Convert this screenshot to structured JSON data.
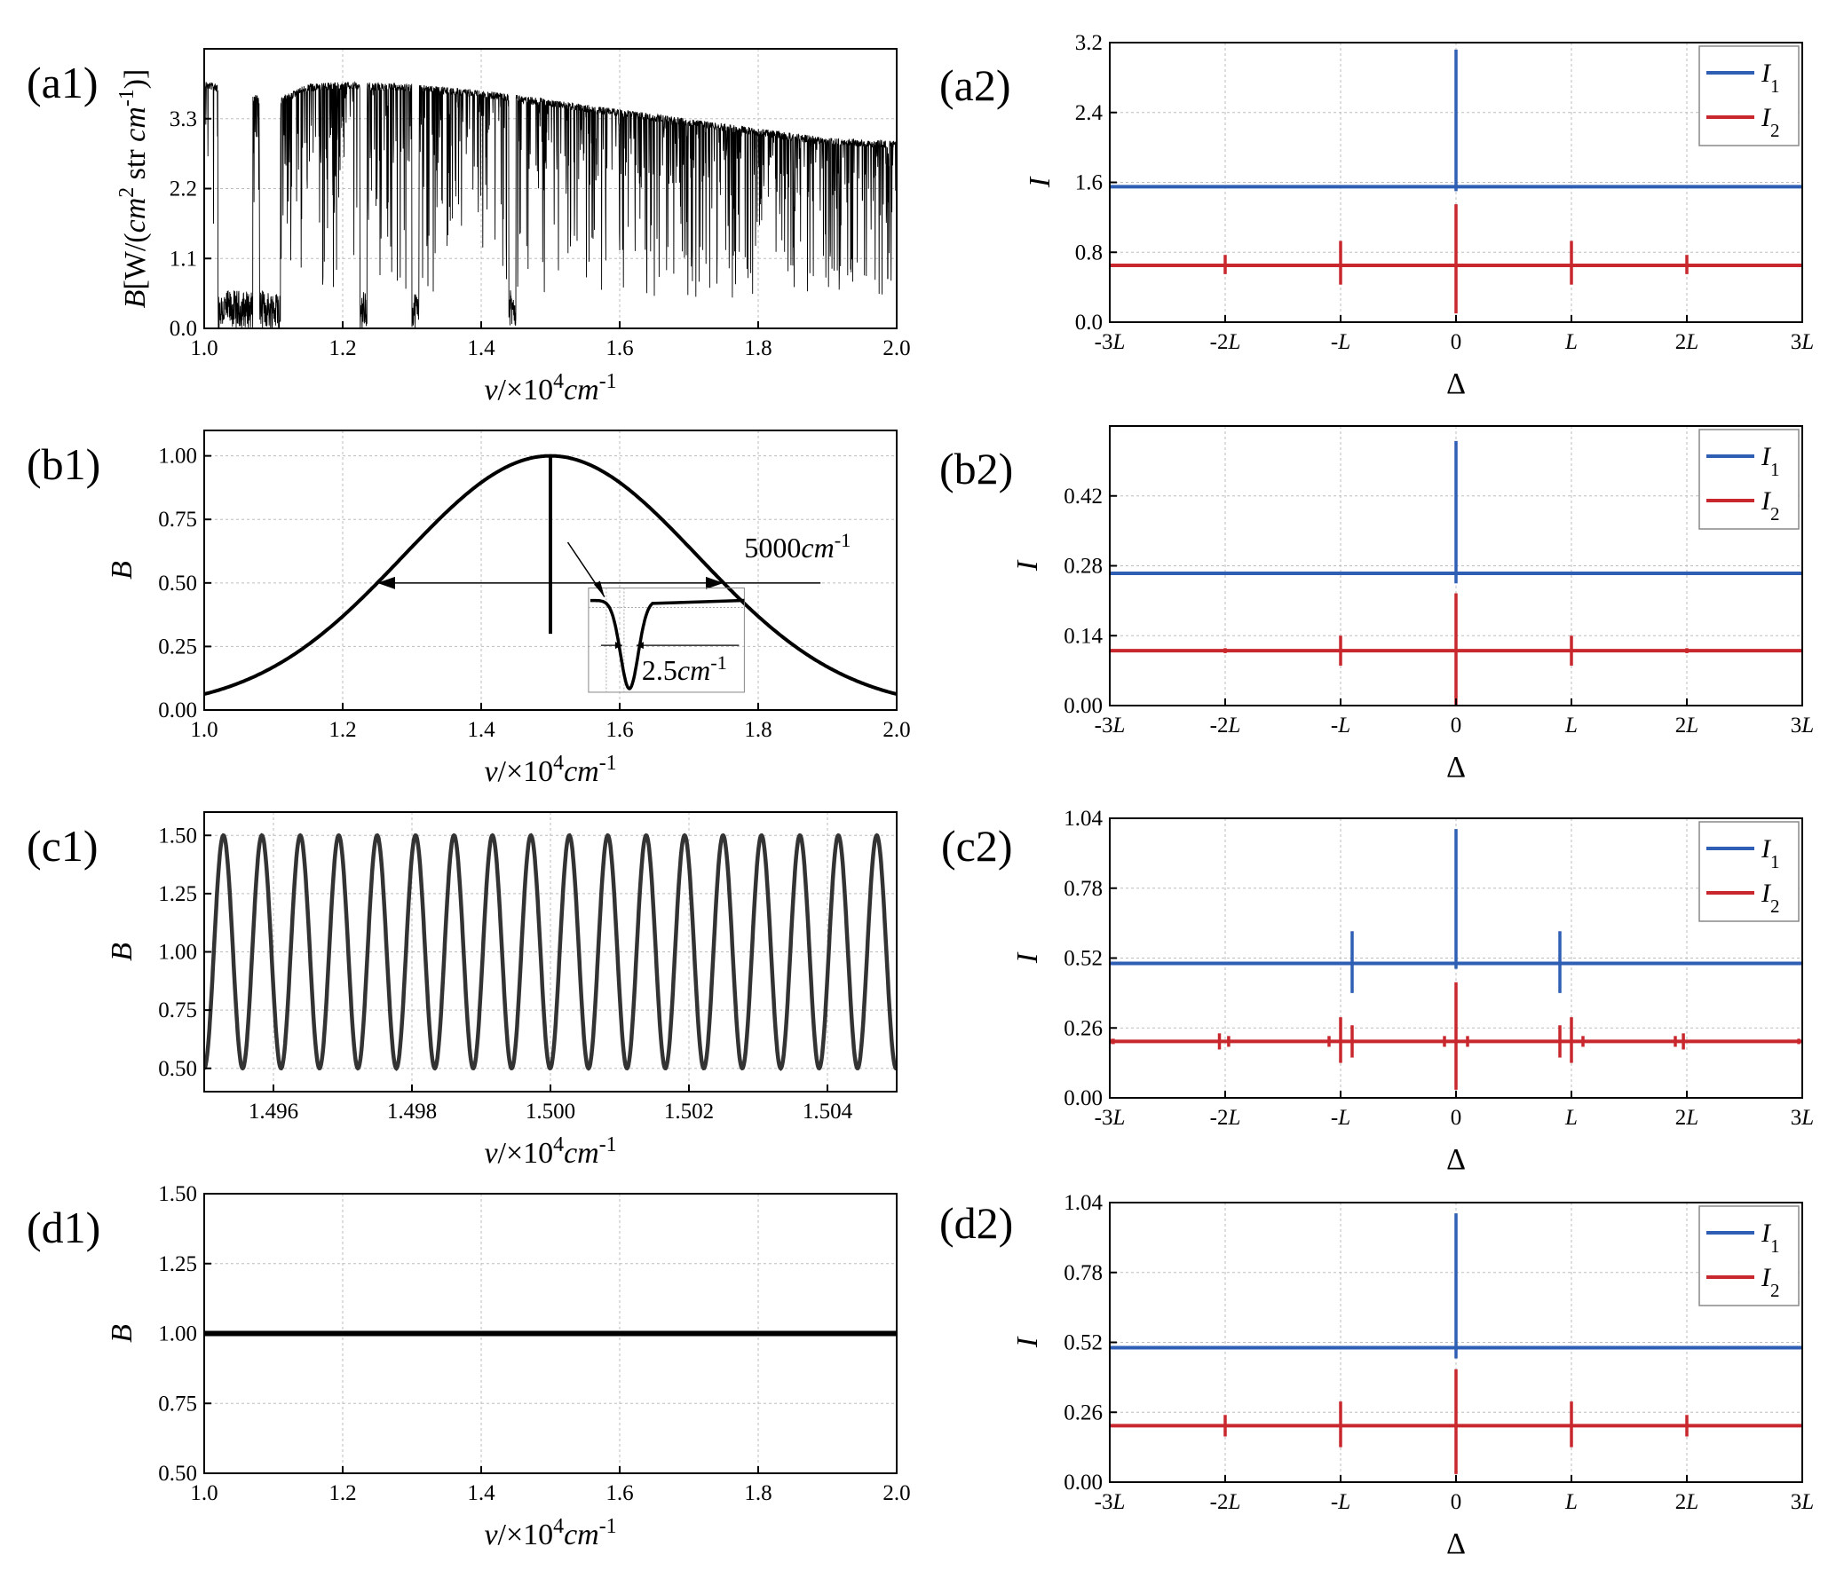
{
  "figure": {
    "colors": {
      "blue": "#2f5fb4",
      "red": "#c8282d",
      "black": "#000000",
      "dark": "#333333",
      "grid": "#bdbdbd"
    }
  },
  "chart_data": [
    {
      "id": "a1",
      "panel_label": "(a1)",
      "type": "line",
      "description_visible": "solar-like spectrum with many absorption lines",
      "ylabel_parts": [
        "B[W/(",
        "cm",
        "2",
        " str ",
        "cm",
        "-1",
        ")]"
      ],
      "xlabel_parts": [
        "v",
        "/×10",
        "4",
        "cm",
        "-1"
      ],
      "xlim": [
        1.0,
        2.0
      ],
      "ylim": [
        0.0,
        4.4
      ],
      "xticks": [
        1.0,
        1.2,
        1.4,
        1.6,
        1.8,
        2.0
      ],
      "xtick_labels": [
        "1.0",
        "1.2",
        "1.4",
        "1.6",
        "1.8",
        "2.0"
      ],
      "yticks": [
        0.0,
        1.1,
        2.2,
        3.3
      ],
      "ytick_labels": [
        "0.0",
        "1.1",
        "2.2",
        "3.3"
      ],
      "envelope": {
        "x": [
          1.0,
          1.05,
          1.1,
          1.15,
          1.2,
          1.3,
          1.4,
          1.5,
          1.6,
          1.7,
          1.8,
          1.9,
          2.0
        ],
        "y": [
          3.9,
          3.75,
          3.6,
          3.85,
          3.88,
          3.85,
          3.75,
          3.6,
          3.45,
          3.3,
          3.15,
          3.0,
          2.95
        ]
      },
      "deep_bands": [
        [
          1.02,
          1.07
        ],
        [
          1.08,
          1.11
        ],
        [
          1.225,
          1.235
        ],
        [
          1.3,
          1.31
        ],
        [
          1.44,
          1.45
        ]
      ],
      "grid": true
    },
    {
      "id": "b1",
      "panel_label": "(b1)",
      "type": "line",
      "description_visible": "Gaussian spectrum centred at 1.5 with a narrow absorption line",
      "ylabel_parts": [
        "B"
      ],
      "xlabel_parts": [
        "v",
        "/×10",
        "4",
        "cm",
        "-1"
      ],
      "xlim": [
        1.0,
        2.0
      ],
      "ylim": [
        0.0,
        1.1
      ],
      "xticks": [
        1.0,
        1.2,
        1.4,
        1.6,
        1.8,
        2.0
      ],
      "xtick_labels": [
        "1.0",
        "1.2",
        "1.4",
        "1.6",
        "1.8",
        "2.0"
      ],
      "yticks": [
        0.0,
        0.25,
        0.5,
        0.75,
        1.0
      ],
      "ytick_labels": [
        "0.00",
        "0.25",
        "0.50",
        "0.75",
        "1.00"
      ],
      "center": 1.5,
      "fwhm": 0.5,
      "absorption_min": 0.3,
      "annotations": {
        "width_label_parts": [
          "5000",
          "cm",
          "-1"
        ],
        "line_width_label_parts": [
          "2.5",
          "cm",
          "-1"
        ]
      },
      "grid": true
    },
    {
      "id": "c1",
      "panel_label": "(c1)",
      "type": "line",
      "description_visible": "sinusoidally modulated spectrum",
      "ylabel_parts": [
        "B"
      ],
      "xlabel_parts": [
        "v",
        "/×10",
        "4",
        "cm",
        "-1"
      ],
      "xlim": [
        1.495,
        1.505
      ],
      "ylim": [
        0.4,
        1.6
      ],
      "xticks": [
        1.496,
        1.498,
        1.5,
        1.502,
        1.504
      ],
      "xtick_labels": [
        "1.496",
        "1.498",
        "1.500",
        "1.502",
        "1.504"
      ],
      "yticks": [
        0.5,
        0.75,
        1.0,
        1.25,
        1.5
      ],
      "ytick_labels": [
        "0.50",
        "0.75",
        "1.00",
        "1.25",
        "1.50"
      ],
      "series": [
        {
          "mean": 1.0,
          "amplitude": 0.5,
          "period": 0.000555,
          "start": 1.495
        }
      ],
      "grid": true
    },
    {
      "id": "d1",
      "panel_label": "(d1)",
      "type": "line",
      "description_visible": "flat spectrum",
      "ylabel_parts": [
        "B"
      ],
      "xlabel_parts": [
        "v",
        "/×10",
        "4",
        "cm",
        "-1"
      ],
      "xlim": [
        1.0,
        2.0
      ],
      "ylim": [
        0.5,
        1.5
      ],
      "xticks": [
        1.0,
        1.2,
        1.4,
        1.6,
        1.8,
        2.0
      ],
      "xtick_labels": [
        "1.0",
        "1.2",
        "1.4",
        "1.6",
        "1.8",
        "2.0"
      ],
      "yticks": [
        0.5,
        0.75,
        1.0,
        1.25,
        1.5
      ],
      "ytick_labels": [
        "0.50",
        "0.75",
        "1.00",
        "1.25",
        "1.50"
      ],
      "series": [
        {
          "x": [
            1.0,
            2.0
          ],
          "y": [
            1.0,
            1.0
          ]
        }
      ],
      "grid": true
    },
    {
      "id": "a2",
      "panel_label": "(a2)",
      "type": "line",
      "ylabel_parts": [
        "I"
      ],
      "xlabel_parts": [
        "Δ"
      ],
      "xlim": [
        -3,
        3
      ],
      "ylim": [
        0.0,
        3.2
      ],
      "xticks": [
        -3,
        -2,
        -1,
        0,
        1,
        2,
        3
      ],
      "xtick_labels": [
        "-3L",
        "-2L",
        "-L",
        "0",
        "L",
        "2L",
        "3L"
      ],
      "yticks": [
        0.0,
        0.8,
        1.6,
        2.4,
        3.2
      ],
      "ytick_labels": [
        "0.0",
        "0.8",
        "1.6",
        "2.4",
        "3.2"
      ],
      "legend": {
        "position": "top-right",
        "entries": [
          {
            "name": "I",
            "sub": "1"
          },
          {
            "name": "I",
            "sub": "2"
          }
        ]
      },
      "series": [
        {
          "name": "I1",
          "color": "blue",
          "baseline": 1.55,
          "spikes": [
            {
              "x": 0,
              "lo": 1.5,
              "hi": 3.12
            }
          ]
        },
        {
          "name": "I2",
          "color": "red",
          "baseline": 0.65,
          "spikes": [
            {
              "x": -2,
              "lo": 0.55,
              "hi": 0.77
            },
            {
              "x": -1,
              "lo": 0.43,
              "hi": 0.93
            },
            {
              "x": 0,
              "lo": 0.1,
              "hi": 1.35
            },
            {
              "x": 1,
              "lo": 0.43,
              "hi": 0.93
            },
            {
              "x": 2,
              "lo": 0.55,
              "hi": 0.77
            }
          ]
        }
      ],
      "grid": true
    },
    {
      "id": "b2",
      "panel_label": "(b2)",
      "type": "line",
      "ylabel_parts": [
        "I"
      ],
      "xlabel_parts": [
        "Δ"
      ],
      "xlim": [
        -3,
        3
      ],
      "ylim": [
        0.0,
        0.56
      ],
      "xticks": [
        -3,
        -2,
        -1,
        0,
        1,
        2,
        3
      ],
      "xtick_labels": [
        "-3L",
        "-2L",
        "-L",
        "0",
        "L",
        "2L",
        "3L"
      ],
      "yticks": [
        0.0,
        0.14,
        0.28,
        0.42
      ],
      "ytick_labels": [
        "0.00",
        "0.14",
        "0.28",
        "0.42"
      ],
      "legend": {
        "position": "top-right",
        "entries": [
          {
            "name": "I",
            "sub": "1"
          },
          {
            "name": "I",
            "sub": "2"
          }
        ]
      },
      "series": [
        {
          "name": "I1",
          "color": "blue",
          "baseline": 0.265,
          "spikes": [
            {
              "x": 0,
              "lo": 0.245,
              "hi": 0.53
            }
          ]
        },
        {
          "name": "I2",
          "color": "red",
          "baseline": 0.11,
          "spikes": [
            {
              "x": -2,
              "lo": 0.105,
              "hi": 0.115
            },
            {
              "x": -1,
              "lo": 0.08,
              "hi": 0.14
            },
            {
              "x": 0,
              "lo": 0.0,
              "hi": 0.225
            },
            {
              "x": 1,
              "lo": 0.08,
              "hi": 0.14
            },
            {
              "x": 2,
              "lo": 0.105,
              "hi": 0.115
            }
          ]
        }
      ],
      "grid": true
    },
    {
      "id": "c2",
      "panel_label": "(c2)",
      "type": "line",
      "ylabel_parts": [
        "I"
      ],
      "xlabel_parts": [
        "Δ"
      ],
      "xlim": [
        -3,
        3
      ],
      "ylim": [
        0.0,
        1.04
      ],
      "xticks": [
        -3,
        -2,
        -1,
        0,
        1,
        2,
        3
      ],
      "xtick_labels": [
        "-3L",
        "-2L",
        "-L",
        "0",
        "L",
        "2L",
        "3L"
      ],
      "yticks": [
        0.0,
        0.26,
        0.52,
        0.78,
        1.04
      ],
      "ytick_labels": [
        "0.00",
        "0.26",
        "0.52",
        "0.78",
        "1.04"
      ],
      "legend": {
        "position": "top-right",
        "entries": [
          {
            "name": "I",
            "sub": "1"
          },
          {
            "name": "I",
            "sub": "2"
          }
        ]
      },
      "series": [
        {
          "name": "I1",
          "color": "blue",
          "baseline": 0.5,
          "spikes": [
            {
              "x": -0.9,
              "lo": 0.39,
              "hi": 0.62
            },
            {
              "x": 0,
              "lo": 0.48,
              "hi": 1.0
            },
            {
              "x": 0.9,
              "lo": 0.39,
              "hi": 0.62
            }
          ]
        },
        {
          "name": "I2",
          "color": "red",
          "baseline": 0.21,
          "spikes": [
            {
              "x": -3,
              "lo": 0.2,
              "hi": 0.22
            },
            {
              "x": -2.97,
              "lo": 0.2,
              "hi": 0.22
            },
            {
              "x": -2.05,
              "lo": 0.18,
              "hi": 0.24
            },
            {
              "x": -1.97,
              "lo": 0.19,
              "hi": 0.23
            },
            {
              "x": -1.1,
              "lo": 0.19,
              "hi": 0.23
            },
            {
              "x": -1.0,
              "lo": 0.13,
              "hi": 0.3
            },
            {
              "x": -0.9,
              "lo": 0.15,
              "hi": 0.27
            },
            {
              "x": -0.1,
              "lo": 0.19,
              "hi": 0.23
            },
            {
              "x": 0,
              "lo": 0.03,
              "hi": 0.43
            },
            {
              "x": 0.1,
              "lo": 0.19,
              "hi": 0.23
            },
            {
              "x": 0.9,
              "lo": 0.15,
              "hi": 0.27
            },
            {
              "x": 1.0,
              "lo": 0.13,
              "hi": 0.3
            },
            {
              "x": 1.1,
              "lo": 0.19,
              "hi": 0.23
            },
            {
              "x": 1.9,
              "lo": 0.19,
              "hi": 0.23
            },
            {
              "x": 1.97,
              "lo": 0.18,
              "hi": 0.24
            },
            {
              "x": 2.97,
              "lo": 0.2,
              "hi": 0.22
            }
          ]
        }
      ],
      "grid": true
    },
    {
      "id": "d2",
      "panel_label": "(d2)",
      "type": "line",
      "ylabel_parts": [
        "I"
      ],
      "xlabel_parts": [
        "Δ"
      ],
      "xlim": [
        -3,
        3
      ],
      "ylim": [
        0.0,
        1.04
      ],
      "xticks": [
        -3,
        -2,
        -1,
        0,
        1,
        2,
        3
      ],
      "xtick_labels": [
        "-3L",
        "-2L",
        "-L",
        "0",
        "L",
        "2L",
        "3L"
      ],
      "yticks": [
        0.0,
        0.26,
        0.52,
        0.78,
        1.04
      ],
      "ytick_labels": [
        "0.00",
        "0.26",
        "0.52",
        "0.78",
        "1.04"
      ],
      "legend": {
        "position": "top-right",
        "entries": [
          {
            "name": "I",
            "sub": "1"
          },
          {
            "name": "I",
            "sub": "2"
          }
        ]
      },
      "series": [
        {
          "name": "I1",
          "color": "blue",
          "baseline": 0.5,
          "spikes": [
            {
              "x": 0,
              "lo": 0.46,
              "hi": 1.0
            }
          ]
        },
        {
          "name": "I2",
          "color": "red",
          "baseline": 0.21,
          "spikes": [
            {
              "x": -2,
              "lo": 0.17,
              "hi": 0.25
            },
            {
              "x": -1,
              "lo": 0.13,
              "hi": 0.3
            },
            {
              "x": 0,
              "lo": 0.03,
              "hi": 0.42
            },
            {
              "x": 1,
              "lo": 0.13,
              "hi": 0.3
            },
            {
              "x": 2,
              "lo": 0.17,
              "hi": 0.25
            }
          ]
        }
      ],
      "grid": true
    }
  ]
}
